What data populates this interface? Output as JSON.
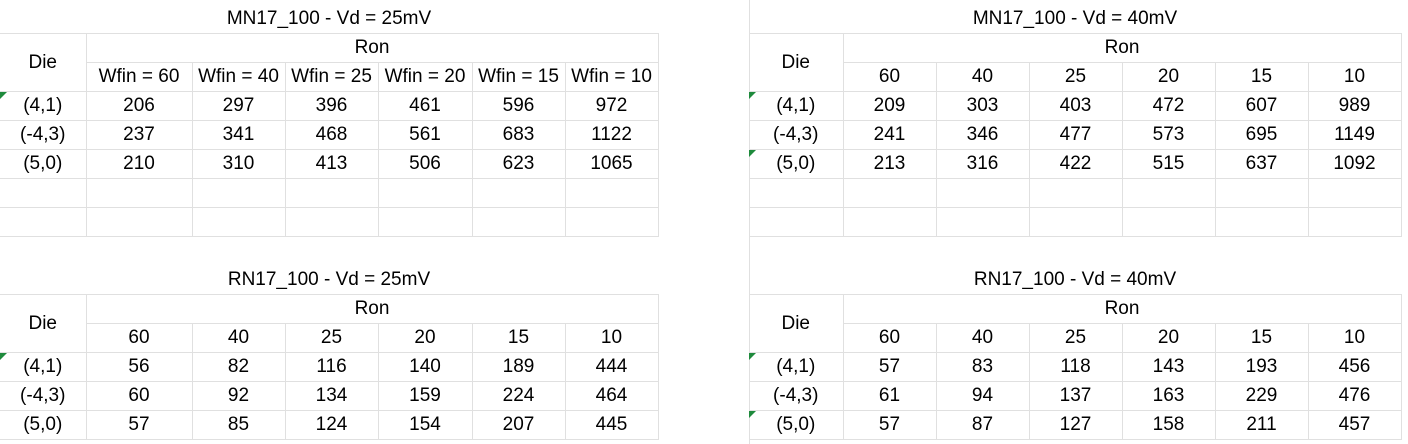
{
  "tables": [
    {
      "title": "MN17_100 - Vd = 25mV",
      "die_label": "Die",
      "ron_label": "Ron",
      "columns": [
        "Wfin = 60",
        "Wfin = 40",
        "Wfin = 25",
        "Wfin = 20",
        "Wfin = 15",
        "Wfin = 10"
      ],
      "rows": [
        {
          "die": "(4,1)",
          "values": [
            "206",
            "297",
            "396",
            "461",
            "596",
            "972"
          ]
        },
        {
          "die": "(-4,3)",
          "values": [
            "237",
            "341",
            "468",
            "561",
            "683",
            "1122"
          ]
        },
        {
          "die": "(5,0)",
          "values": [
            "210",
            "310",
            "413",
            "506",
            "623",
            "1065"
          ]
        }
      ]
    },
    {
      "title": "MN17_100 - Vd = 40mV",
      "die_label": "Die",
      "ron_label": "Ron",
      "columns": [
        "60",
        "40",
        "25",
        "20",
        "15",
        "10"
      ],
      "rows": [
        {
          "die": "(4,1)",
          "values": [
            "209",
            "303",
            "403",
            "472",
            "607",
            "989"
          ]
        },
        {
          "die": "(-4,3)",
          "values": [
            "241",
            "346",
            "477",
            "573",
            "695",
            "1149"
          ]
        },
        {
          "die": "(5,0)",
          "values": [
            "213",
            "316",
            "422",
            "515",
            "637",
            "1092"
          ]
        }
      ]
    },
    {
      "title": "RN17_100 - Vd = 25mV",
      "die_label": "Die",
      "ron_label": "Ron",
      "columns": [
        "60",
        "40",
        "25",
        "20",
        "15",
        "10"
      ],
      "rows": [
        {
          "die": "(4,1)",
          "values": [
            "56",
            "82",
            "116",
            "140",
            "189",
            "444"
          ]
        },
        {
          "die": "(-4,3)",
          "values": [
            "60",
            "92",
            "134",
            "159",
            "224",
            "464"
          ]
        },
        {
          "die": "(5,0)",
          "values": [
            "57",
            "85",
            "124",
            "154",
            "207",
            "445"
          ]
        }
      ]
    },
    {
      "title": "RN17_100 - Vd = 40mV",
      "die_label": "Die",
      "ron_label": "Ron",
      "columns": [
        "60",
        "40",
        "25",
        "20",
        "15",
        "10"
      ],
      "rows": [
        {
          "die": "(4,1)",
          "values": [
            "57",
            "83",
            "118",
            "143",
            "193",
            "456"
          ]
        },
        {
          "die": "(-4,3)",
          "values": [
            "61",
            "94",
            "137",
            "163",
            "229",
            "476"
          ]
        },
        {
          "die": "(5,0)",
          "values": [
            "57",
            "87",
            "127",
            "158",
            "211",
            "457"
          ]
        }
      ]
    }
  ]
}
